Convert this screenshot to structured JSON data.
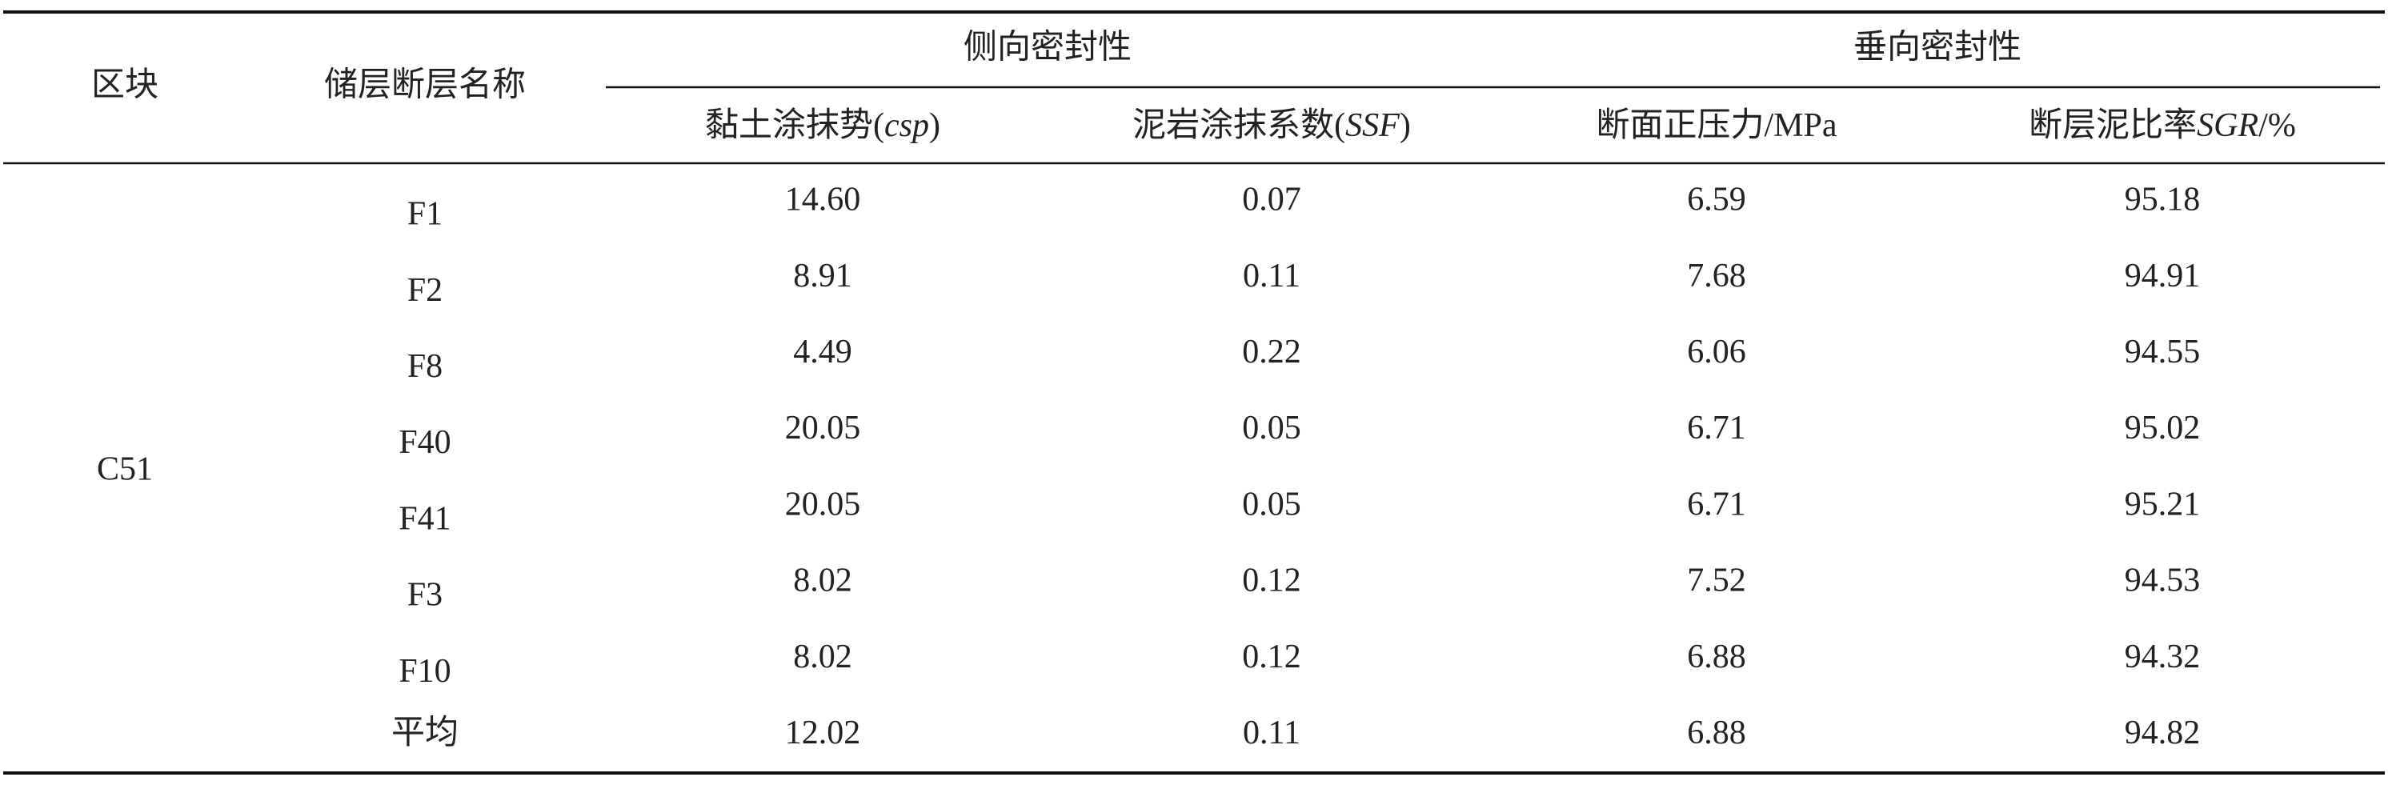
{
  "table": {
    "header": {
      "block": "区块",
      "fault": "储层断层名称",
      "groups": [
        "侧向密封性",
        "垂向密封性"
      ],
      "columns": [
        [
          "黏土涂抹势(",
          "csp",
          ")"
        ],
        [
          "泥岩涂抹系数(",
          "SSF",
          ")"
        ],
        [
          "断面正压力/MPa"
        ],
        [
          "断层泥比率",
          "SGR",
          "/%"
        ]
      ]
    },
    "block": "C51",
    "rows": [
      [
        "F1",
        "14.60",
        "0.07",
        "6.59",
        "95.18"
      ],
      [
        "F2",
        "8.91",
        "0.11",
        "7.68",
        "94.91"
      ],
      [
        "F8",
        "4.49",
        "0.22",
        "6.06",
        "94.55"
      ],
      [
        "F40",
        "20.05",
        "0.05",
        "6.71",
        "95.02"
      ],
      [
        "F41",
        "20.05",
        "0.05",
        "6.71",
        "95.21"
      ],
      [
        "F3",
        "8.02",
        "0.12",
        "7.52",
        "94.53"
      ],
      [
        "F10",
        "8.02",
        "0.12",
        "6.88",
        "94.32"
      ],
      [
        "平均",
        "12.02",
        "0.11",
        "6.88",
        "94.82"
      ]
    ]
  }
}
